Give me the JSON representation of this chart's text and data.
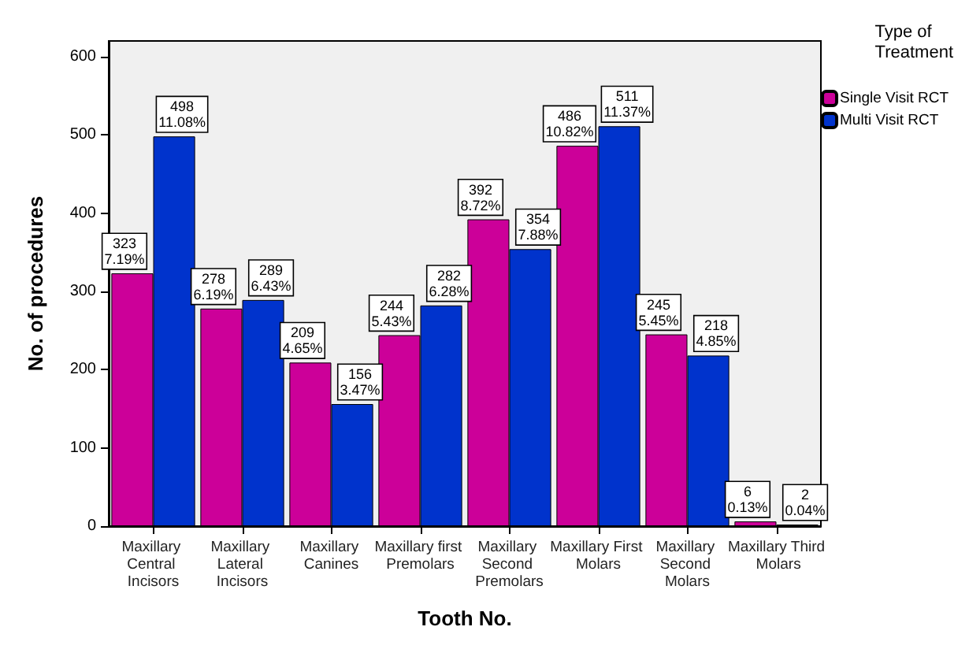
{
  "chart_data": {
    "type": "bar",
    "xlabel": "Tooth No.",
    "ylabel": "No. of procedures",
    "legend_title": "Type of Treatment",
    "categories": [
      "Maxillary Central Incisors",
      "Maxillary Lateral Incisors",
      "Maxillary Canines",
      "Maxillary first Premolars",
      "Maxillary Second Premolars",
      "Maxillary First Molars",
      "Maxillary Second Molars",
      "Maxillary Third Molars"
    ],
    "series": [
      {
        "name": "Single Visit RCT",
        "color": "#cc0099",
        "values": [
          323,
          278,
          209,
          244,
          392,
          486,
          245,
          6
        ],
        "value_labels": [
          "323\n7.19%",
          "278\n6.19%",
          "209\n4.65%",
          "244\n5.43%",
          "392\n8.72%",
          "486\n10.82%",
          "245\n5.45%",
          "6\n0.13%"
        ]
      },
      {
        "name": "Multi Visit RCT",
        "color": "#0033cc",
        "values": [
          498,
          289,
          156,
          282,
          354,
          511,
          218,
          2
        ],
        "value_labels": [
          "498\n11.08%",
          "289\n6.43%",
          "156\n3.47%",
          "282\n6.28%",
          "354\n7.88%",
          "511\n11.37%",
          "218\n4.85%",
          "2\n0.04%"
        ]
      }
    ],
    "ylim": [
      0,
      620
    ],
    "yticks": [
      0,
      100,
      200,
      300,
      400,
      500,
      600
    ],
    "grid": false,
    "legend": "top right"
  }
}
